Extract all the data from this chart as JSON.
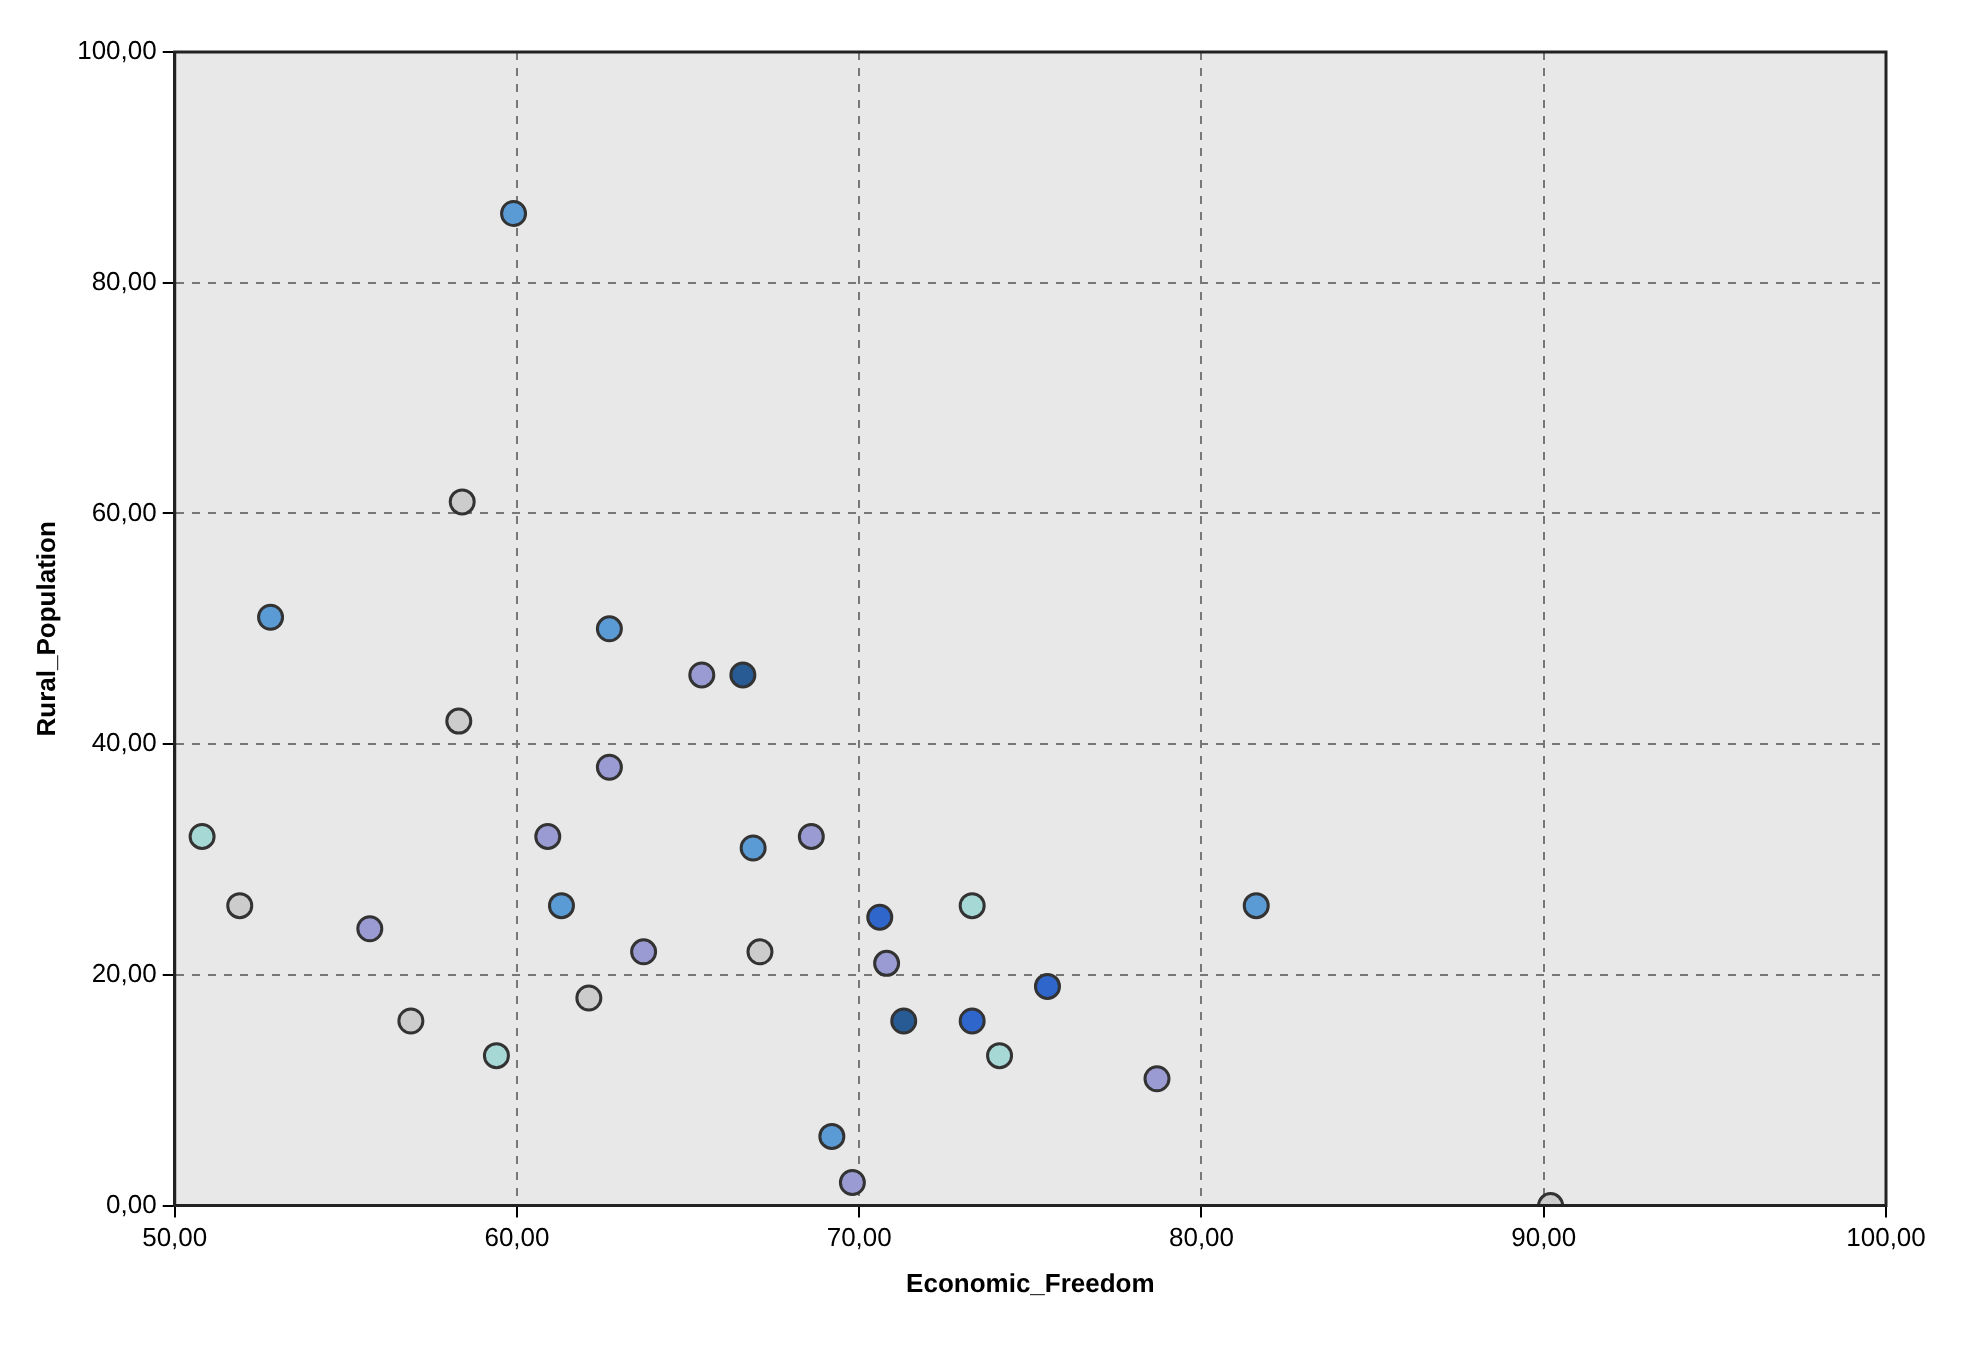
{
  "chart_data": {
    "type": "scatter",
    "xlabel": "Economic_Freedom",
    "ylabel": "Rural_Population",
    "xlim": [
      50,
      100
    ],
    "xticks": [
      {
        "value": 50,
        "label": "50,00"
      },
      {
        "value": 60,
        "label": "60,00"
      },
      {
        "value": 70,
        "label": "70,00"
      },
      {
        "value": 80,
        "label": "80,00"
      },
      {
        "value": 90,
        "label": "90,00"
      },
      {
        "value": 100,
        "label": "100,00"
      }
    ],
    "ylim": [
      0,
      100
    ],
    "yticks": [
      {
        "value": 0,
        "label": "0,00"
      },
      {
        "value": 20,
        "label": "20,00"
      },
      {
        "value": 40,
        "label": "40,00"
      },
      {
        "value": 60,
        "label": "60,00"
      },
      {
        "value": 80,
        "label": "80,00"
      },
      {
        "value": 100,
        "label": "100,00"
      }
    ],
    "grid": true,
    "legend": false,
    "marker": "circle",
    "series": [
      {
        "x": [
          58.3,
          50.8,
          51.9,
          55.7,
          62.7,
          60.9,
          61.3,
          63.7,
          67.1,
          66.9,
          68.6,
          56.9,
          59.4,
          62.1,
          69.2,
          69.8,
          70.6,
          70.8,
          71.3,
          73.3,
          73.3,
          74.1,
          59.9,
          58.4,
          52.8,
          62.7,
          65.4,
          66.6,
          81.6,
          75.5,
          78.7,
          90.2
        ],
        "values": [
          42,
          32,
          26,
          24,
          38,
          32,
          26,
          22,
          22,
          31,
          32,
          16,
          13,
          18,
          6,
          2,
          25,
          21,
          16,
          26,
          16,
          13,
          86,
          61,
          51,
          50,
          46,
          46,
          26,
          19,
          11,
          0
        ],
        "colors": [
          "#cccccc",
          "#a6d9d6",
          "#cccccc",
          "#9b9bd3",
          "#9b9bd3",
          "#9b9bd3",
          "#5b9bd5",
          "#9b9bd3",
          "#cccccc",
          "#5b9bd5",
          "#9b9bd3",
          "#cccccc",
          "#a6d9d6",
          "#cccccc",
          "#5b9bd5",
          "#9b9bd3",
          "#2f66cc",
          "#9b9bd3",
          "#285a94",
          "#a6d9d6",
          "#2f66cc",
          "#a6d9d6",
          "#5b9bd5",
          "#cccccc",
          "#5b9bd5",
          "#5b9bd5",
          "#9b9bd3",
          "#285a94",
          "#5b9bd5",
          "#2f66cc",
          "#9b9bd3",
          "#cccccc"
        ]
      }
    ]
  }
}
